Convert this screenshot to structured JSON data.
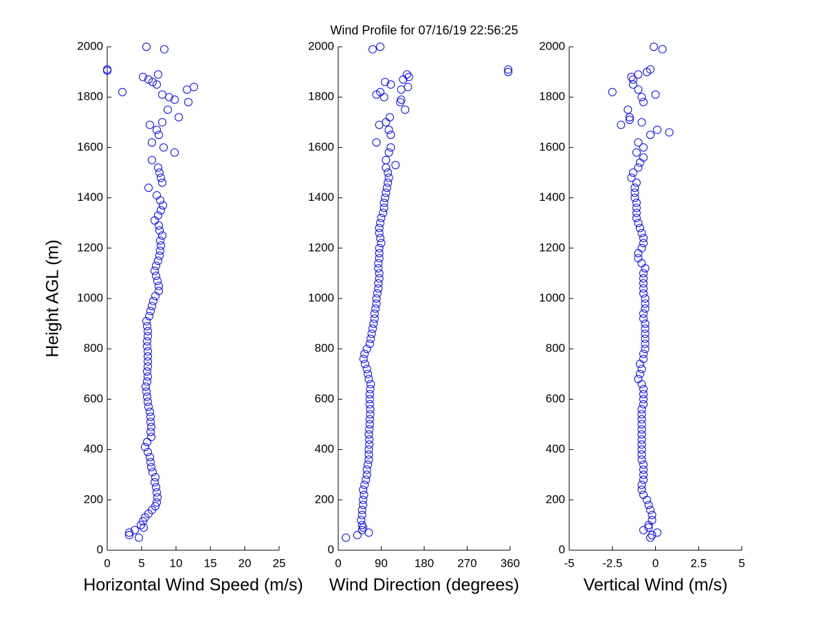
{
  "chart_data": [
    {
      "type": "scatter",
      "title": "Wind Profile for  07/16/19 22:56:25",
      "xlabel": "Horizontal Wind Speed (m/s)",
      "ylabel": "Height AGL (m)",
      "color": "#0000ff",
      "marker": "circle",
      "xlim": [
        0,
        25
      ],
      "xticks": [
        0,
        5,
        10,
        15,
        20,
        25
      ],
      "ylim": [
        0,
        2000
      ],
      "yticks": [
        0,
        200,
        400,
        600,
        800,
        1000,
        1200,
        1400,
        1600,
        1800,
        2000
      ],
      "x": [
        4.6,
        3.2,
        3.2,
        4,
        5.3,
        4.9,
        5.2,
        5.5,
        6,
        6.5,
        7,
        7.2,
        7.3,
        7.2,
        7.1,
        6.9,
        7,
        6.6,
        6.4,
        6.3,
        6.2,
        5.9,
        5.5,
        5.8,
        6.4,
        6.3,
        6.4,
        6.3,
        6.3,
        6.2,
        6,
        5.9,
        5.8,
        5.7,
        5.6,
        5.8,
        5.9,
        5.8,
        5.9,
        5.9,
        5.9,
        5.9,
        5.8,
        5.8,
        5.9,
        5.9,
        5.8,
        5.7,
        6.1,
        6.3,
        6.5,
        6.7,
        7,
        7.5,
        7.5,
        7.3,
        7.1,
        6.9,
        7.1,
        7.4,
        7.6,
        7.7,
        7.8,
        7.7,
        8,
        7.6,
        7.5,
        6.9,
        7.4,
        7.8,
        8.1,
        7.7,
        7.2,
        6,
        8,
        7.8,
        7.6,
        7.4,
        6.5,
        9.8,
        8.2,
        6.5,
        7.5,
        7.2,
        6.2,
        8,
        10.4,
        8.8,
        11.8,
        9.8,
        9,
        8,
        2.2,
        11.6,
        12.6,
        7.2,
        6.6,
        6,
        5.2,
        7.4,
        0,
        0,
        8.3,
        5.7
      ],
      "y": [
        50,
        60,
        70,
        80,
        90,
        100,
        115,
        130,
        145,
        160,
        175,
        190,
        210,
        230,
        250,
        270,
        290,
        310,
        330,
        350,
        370,
        390,
        410,
        430,
        450,
        470,
        490,
        510,
        530,
        550,
        570,
        590,
        610,
        630,
        650,
        670,
        690,
        710,
        730,
        750,
        770,
        790,
        810,
        830,
        850,
        870,
        890,
        910,
        930,
        950,
        970,
        990,
        1010,
        1030,
        1050,
        1070,
        1090,
        1110,
        1130,
        1150,
        1170,
        1190,
        1210,
        1230,
        1250,
        1270,
        1290,
        1310,
        1330,
        1350,
        1370,
        1390,
        1410,
        1440,
        1460,
        1480,
        1500,
        1520,
        1550,
        1580,
        1600,
        1620,
        1650,
        1670,
        1690,
        1700,
        1720,
        1750,
        1780,
        1790,
        1800,
        1810,
        1820,
        1830,
        1840,
        1850,
        1860,
        1870,
        1880,
        1890,
        1905,
        1910,
        1990,
        2000
      ]
    },
    {
      "type": "scatter",
      "xlabel": "Wind Direction (degrees)",
      "color": "#0000ff",
      "marker": "circle",
      "xlim": [
        0,
        360
      ],
      "xticks": [
        0,
        90,
        180,
        270,
        360
      ],
      "ylim": [
        0,
        2000
      ],
      "yticks": [
        0,
        200,
        400,
        600,
        800,
        1000,
        1200,
        1400,
        1600,
        1800,
        2000
      ],
      "x": [
        16,
        40,
        64,
        50,
        52,
        50,
        48,
        50,
        50,
        52,
        52,
        54,
        52,
        55,
        58,
        60,
        60,
        62,
        64,
        64,
        64,
        65,
        65,
        64,
        65,
        66,
        66,
        67,
        67,
        66,
        66,
        66,
        67,
        68,
        64,
        62,
        60,
        56,
        53,
        55,
        60,
        66,
        68,
        70,
        72,
        74,
        76,
        76,
        78,
        80,
        80,
        82,
        84,
        84,
        86,
        86,
        84,
        84,
        86,
        86,
        86,
        90,
        88,
        86,
        86,
        88,
        90,
        94,
        96,
        96,
        98,
        100,
        102,
        104,
        106,
        104,
        100,
        120,
        100,
        106,
        110,
        80,
        110,
        106,
        86,
        100,
        108,
        140,
        130,
        132,
        96,
        80,
        88,
        132,
        146,
        110,
        98,
        136,
        148,
        144,
        356,
        356,
        72,
        88
      ],
      "y": [
        50,
        60,
        70,
        80,
        90,
        100,
        120,
        140,
        160,
        180,
        200,
        220,
        240,
        260,
        280,
        300,
        320,
        340,
        360,
        380,
        400,
        420,
        440,
        460,
        480,
        500,
        520,
        540,
        560,
        580,
        600,
        620,
        640,
        660,
        680,
        700,
        720,
        740,
        760,
        780,
        800,
        820,
        840,
        860,
        880,
        900,
        920,
        940,
        960,
        980,
        1000,
        1020,
        1040,
        1060,
        1080,
        1100,
        1120,
        1140,
        1160,
        1180,
        1200,
        1220,
        1240,
        1260,
        1280,
        1300,
        1320,
        1340,
        1360,
        1380,
        1400,
        1420,
        1440,
        1460,
        1480,
        1500,
        1520,
        1530,
        1550,
        1580,
        1600,
        1620,
        1650,
        1670,
        1690,
        1700,
        1720,
        1750,
        1780,
        1790,
        1800,
        1810,
        1820,
        1830,
        1840,
        1850,
        1860,
        1870,
        1880,
        1890,
        1900,
        1910,
        1990,
        2000
      ]
    },
    {
      "type": "scatter",
      "xlabel": "Vertical Wind (m/s)",
      "color": "#0000ff",
      "marker": "circle",
      "xlim": [
        -5,
        5
      ],
      "xticks": [
        -5,
        -2.5,
        0,
        2.5,
        5
      ],
      "ylim": [
        0,
        2000
      ],
      "yticks": [
        0,
        200,
        400,
        600,
        800,
        1000,
        1200,
        1400,
        1600,
        1800,
        2000
      ],
      "x": [
        -0.3,
        -0.2,
        0.1,
        -0.7,
        -0.4,
        -0.4,
        -0.2,
        -0.2,
        -0.3,
        -0.4,
        -0.5,
        -0.7,
        -0.8,
        -0.8,
        -0.7,
        -0.7,
        -0.7,
        -0.7,
        -0.8,
        -0.8,
        -0.8,
        -0.8,
        -0.8,
        -0.8,
        -0.8,
        -0.8,
        -0.8,
        -0.8,
        -0.8,
        -0.7,
        -0.7,
        -0.7,
        -0.7,
        -0.8,
        -1,
        -0.9,
        -0.8,
        -0.9,
        -0.7,
        -0.7,
        -0.6,
        -0.6,
        -0.6,
        -0.6,
        -0.6,
        -0.6,
        -0.7,
        -0.7,
        -0.6,
        -0.6,
        -0.6,
        -0.7,
        -0.7,
        -0.7,
        -0.7,
        -0.7,
        -0.6,
        -0.8,
        -1,
        -1,
        -0.8,
        -0.7,
        -0.7,
        -0.8,
        -0.9,
        -1,
        -1.1,
        -1.1,
        -1.1,
        -1.1,
        -1.2,
        -1.2,
        -1.2,
        -1.1,
        -1.4,
        -1.3,
        -1,
        -0.9,
        -0.7,
        -1.1,
        -0.7,
        -1,
        -0.3,
        0.8,
        0.1,
        -2,
        -0.8,
        -1.5,
        -1.5,
        -1.6,
        -0.7,
        -0.8,
        0,
        -2.5,
        -1,
        -1.3,
        -1.3,
        -1.4,
        -1,
        -0.5,
        -0.3,
        0.4,
        -0.1
      ],
      "y": [
        50,
        60,
        70,
        80,
        90,
        100,
        120,
        140,
        160,
        180,
        200,
        220,
        240,
        260,
        280,
        300,
        320,
        340,
        360,
        380,
        400,
        420,
        440,
        460,
        480,
        500,
        520,
        540,
        560,
        580,
        600,
        620,
        640,
        660,
        680,
        700,
        720,
        740,
        760,
        780,
        800,
        820,
        840,
        860,
        880,
        900,
        920,
        940,
        960,
        980,
        1000,
        1020,
        1040,
        1060,
        1080,
        1100,
        1120,
        1140,
        1160,
        1180,
        1200,
        1220,
        1240,
        1260,
        1280,
        1300,
        1320,
        1340,
        1360,
        1380,
        1400,
        1420,
        1440,
        1460,
        1480,
        1500,
        1520,
        1540,
        1560,
        1580,
        1600,
        1620,
        1650,
        1660,
        1670,
        1690,
        1700,
        1710,
        1720,
        1750,
        1780,
        1800,
        1810,
        1820,
        1830,
        1850,
        1870,
        1880,
        1890,
        1900,
        1910,
        1990,
        2000
      ]
    }
  ]
}
